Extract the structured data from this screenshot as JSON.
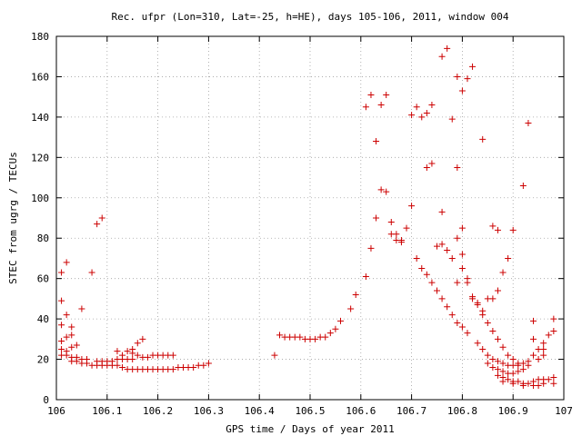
{
  "chart_data": {
    "type": "scatter",
    "title": "Rec. ufpr (Lon=310, Lat=-25, h=HE), days 105-106, 2011, window 004",
    "xlabel": "GPS time / Days of year 2011",
    "ylabel": "STEC from ugrg / TECUs",
    "xlim": [
      106,
      107
    ],
    "ylim": [
      0,
      180
    ],
    "x_ticks": [
      106,
      106.1,
      106.2,
      106.3,
      106.4,
      106.5,
      106.6,
      106.7,
      106.8,
      106.9,
      107
    ],
    "x_tick_labels": [
      "106",
      "106.1",
      "106.2",
      "106.3",
      "106.4",
      "106.5",
      "106.6",
      "106.7",
      "106.8",
      "106.9",
      "107"
    ],
    "y_ticks": [
      0,
      20,
      40,
      60,
      80,
      100,
      120,
      140,
      160,
      180
    ],
    "y_tick_labels": [
      "0",
      "20",
      "40",
      "60",
      "80",
      "100",
      "120",
      "140",
      "160",
      "180"
    ],
    "grid": true,
    "marker": "+",
    "marker_color": "#cc0000",
    "points": [
      [
        106.01,
        63
      ],
      [
        106.02,
        68
      ],
      [
        106.01,
        49
      ],
      [
        106.01,
        37
      ],
      [
        106.02,
        42
      ],
      [
        106.01,
        29
      ],
      [
        106.02,
        31
      ],
      [
        106.03,
        32
      ],
      [
        106.03,
        36
      ],
      [
        106.05,
        45
      ],
      [
        106.01,
        25
      ],
      [
        106.02,
        24
      ],
      [
        106.03,
        26
      ],
      [
        106.04,
        27
      ],
      [
        106.01,
        22
      ],
      [
        106.02,
        22
      ],
      [
        106.03,
        21
      ],
      [
        106.04,
        21
      ],
      [
        106.05,
        20
      ],
      [
        106.06,
        20
      ],
      [
        106.03,
        19
      ],
      [
        106.04,
        19
      ],
      [
        106.05,
        18
      ],
      [
        106.06,
        18
      ],
      [
        106.07,
        63
      ],
      [
        106.08,
        87
      ],
      [
        106.09,
        90
      ],
      [
        106.07,
        17
      ],
      [
        106.08,
        17
      ],
      [
        106.09,
        17
      ],
      [
        106.1,
        17
      ],
      [
        106.11,
        17
      ],
      [
        106.12,
        17
      ],
      [
        106.13,
        16
      ],
      [
        106.08,
        19
      ],
      [
        106.09,
        19
      ],
      [
        106.1,
        19
      ],
      [
        106.11,
        19
      ],
      [
        106.12,
        20
      ],
      [
        106.13,
        20
      ],
      [
        106.14,
        20
      ],
      [
        106.15,
        20
      ],
      [
        106.12,
        24
      ],
      [
        106.14,
        24
      ],
      [
        106.15,
        25
      ],
      [
        106.16,
        28
      ],
      [
        106.17,
        30
      ],
      [
        106.13,
        22
      ],
      [
        106.15,
        23
      ],
      [
        106.16,
        22
      ],
      [
        106.17,
        21
      ],
      [
        106.18,
        21
      ],
      [
        106.19,
        22
      ],
      [
        106.2,
        22
      ],
      [
        106.21,
        22
      ],
      [
        106.22,
        22
      ],
      [
        106.23,
        22
      ],
      [
        106.14,
        15
      ],
      [
        106.15,
        15
      ],
      [
        106.16,
        15
      ],
      [
        106.17,
        15
      ],
      [
        106.18,
        15
      ],
      [
        106.19,
        15
      ],
      [
        106.2,
        15
      ],
      [
        106.21,
        15
      ],
      [
        106.22,
        15
      ],
      [
        106.23,
        15
      ],
      [
        106.24,
        16
      ],
      [
        106.25,
        16
      ],
      [
        106.26,
        16
      ],
      [
        106.27,
        16
      ],
      [
        106.28,
        17
      ],
      [
        106.29,
        17
      ],
      [
        106.3,
        18
      ],
      [
        106.43,
        22
      ],
      [
        106.44,
        32
      ],
      [
        106.45,
        31
      ],
      [
        106.46,
        31
      ],
      [
        106.47,
        31
      ],
      [
        106.48,
        31
      ],
      [
        106.49,
        30
      ],
      [
        106.5,
        30
      ],
      [
        106.51,
        30
      ],
      [
        106.52,
        31
      ],
      [
        106.53,
        31
      ],
      [
        106.54,
        33
      ],
      [
        106.55,
        35
      ],
      [
        106.56,
        39
      ],
      [
        106.58,
        45
      ],
      [
        106.59,
        52
      ],
      [
        106.61,
        61
      ],
      [
        106.62,
        75
      ],
      [
        106.63,
        90
      ],
      [
        106.64,
        104
      ],
      [
        106.65,
        103
      ],
      [
        106.66,
        82
      ],
      [
        106.67,
        79
      ],
      [
        106.68,
        79
      ],
      [
        106.61,
        145
      ],
      [
        106.62,
        151
      ],
      [
        106.63,
        128
      ],
      [
        106.64,
        146
      ],
      [
        106.65,
        151
      ],
      [
        106.7,
        141
      ],
      [
        106.71,
        145
      ],
      [
        106.72,
        140
      ],
      [
        106.73,
        142
      ],
      [
        106.74,
        146
      ],
      [
        106.76,
        170
      ],
      [
        106.77,
        174
      ],
      [
        106.79,
        160
      ],
      [
        106.8,
        153
      ],
      [
        106.81,
        159
      ],
      [
        106.82,
        165
      ],
      [
        106.78,
        139
      ],
      [
        106.73,
        115
      ],
      [
        106.74,
        117
      ],
      [
        106.79,
        115
      ],
      [
        106.84,
        129
      ],
      [
        106.86,
        86
      ],
      [
        106.87,
        84
      ],
      [
        106.9,
        84
      ],
      [
        106.92,
        106
      ],
      [
        106.93,
        137
      ],
      [
        106.66,
        88
      ],
      [
        106.67,
        82
      ],
      [
        106.68,
        78
      ],
      [
        106.69,
        85
      ],
      [
        106.7,
        96
      ],
      [
        106.71,
        70
      ],
      [
        106.72,
        65
      ],
      [
        106.73,
        62
      ],
      [
        106.74,
        58
      ],
      [
        106.75,
        54
      ],
      [
        106.76,
        50
      ],
      [
        106.77,
        46
      ],
      [
        106.78,
        42
      ],
      [
        106.79,
        38
      ],
      [
        106.8,
        36
      ],
      [
        106.81,
        33
      ],
      [
        106.76,
        93
      ],
      [
        106.75,
        76
      ],
      [
        106.76,
        77
      ],
      [
        106.77,
        74
      ],
      [
        106.78,
        70
      ],
      [
        106.79,
        80
      ],
      [
        106.8,
        72
      ],
      [
        106.8,
        85
      ],
      [
        106.81,
        60
      ],
      [
        106.82,
        50
      ],
      [
        106.83,
        48
      ],
      [
        106.84,
        44
      ],
      [
        106.85,
        38
      ],
      [
        106.86,
        34
      ],
      [
        106.87,
        30
      ],
      [
        106.88,
        26
      ],
      [
        106.89,
        22
      ],
      [
        106.9,
        20
      ],
      [
        106.91,
        18
      ],
      [
        106.79,
        58
      ],
      [
        106.8,
        65
      ],
      [
        106.81,
        58
      ],
      [
        106.82,
        51
      ],
      [
        106.83,
        47
      ],
      [
        106.84,
        42
      ],
      [
        106.85,
        50
      ],
      [
        106.86,
        50
      ],
      [
        106.87,
        54
      ],
      [
        106.88,
        63
      ],
      [
        106.89,
        70
      ],
      [
        106.83,
        28
      ],
      [
        106.84,
        25
      ],
      [
        106.85,
        22
      ],
      [
        106.86,
        20
      ],
      [
        106.87,
        19
      ],
      [
        106.88,
        18
      ],
      [
        106.89,
        17
      ],
      [
        106.9,
        17
      ],
      [
        106.91,
        17
      ],
      [
        106.92,
        18
      ],
      [
        106.93,
        19
      ],
      [
        106.94,
        22
      ],
      [
        106.95,
        25
      ],
      [
        106.96,
        28
      ],
      [
        106.97,
        32
      ],
      [
        106.98,
        40
      ],
      [
        106.85,
        18
      ],
      [
        106.86,
        16
      ],
      [
        106.87,
        15
      ],
      [
        106.88,
        14
      ],
      [
        106.89,
        13
      ],
      [
        106.9,
        13
      ],
      [
        106.91,
        14
      ],
      [
        106.92,
        15
      ],
      [
        106.93,
        17
      ],
      [
        106.94,
        30
      ],
      [
        106.95,
        20
      ],
      [
        106.96,
        22
      ],
      [
        106.98,
        34
      ],
      [
        106.87,
        12
      ],
      [
        106.88,
        11
      ],
      [
        106.89,
        10
      ],
      [
        106.9,
        9
      ],
      [
        106.91,
        9
      ],
      [
        106.92,
        8
      ],
      [
        106.93,
        8
      ],
      [
        106.94,
        9
      ],
      [
        106.95,
        10
      ],
      [
        106.96,
        10
      ],
      [
        106.97,
        10
      ],
      [
        106.98,
        11
      ],
      [
        106.88,
        9
      ],
      [
        106.9,
        8
      ],
      [
        106.92,
        7
      ],
      [
        106.94,
        7
      ],
      [
        106.95,
        7
      ],
      [
        106.96,
        8
      ],
      [
        106.98,
        8
      ],
      [
        106.94,
        39
      ],
      [
        106.96,
        25
      ]
    ]
  }
}
